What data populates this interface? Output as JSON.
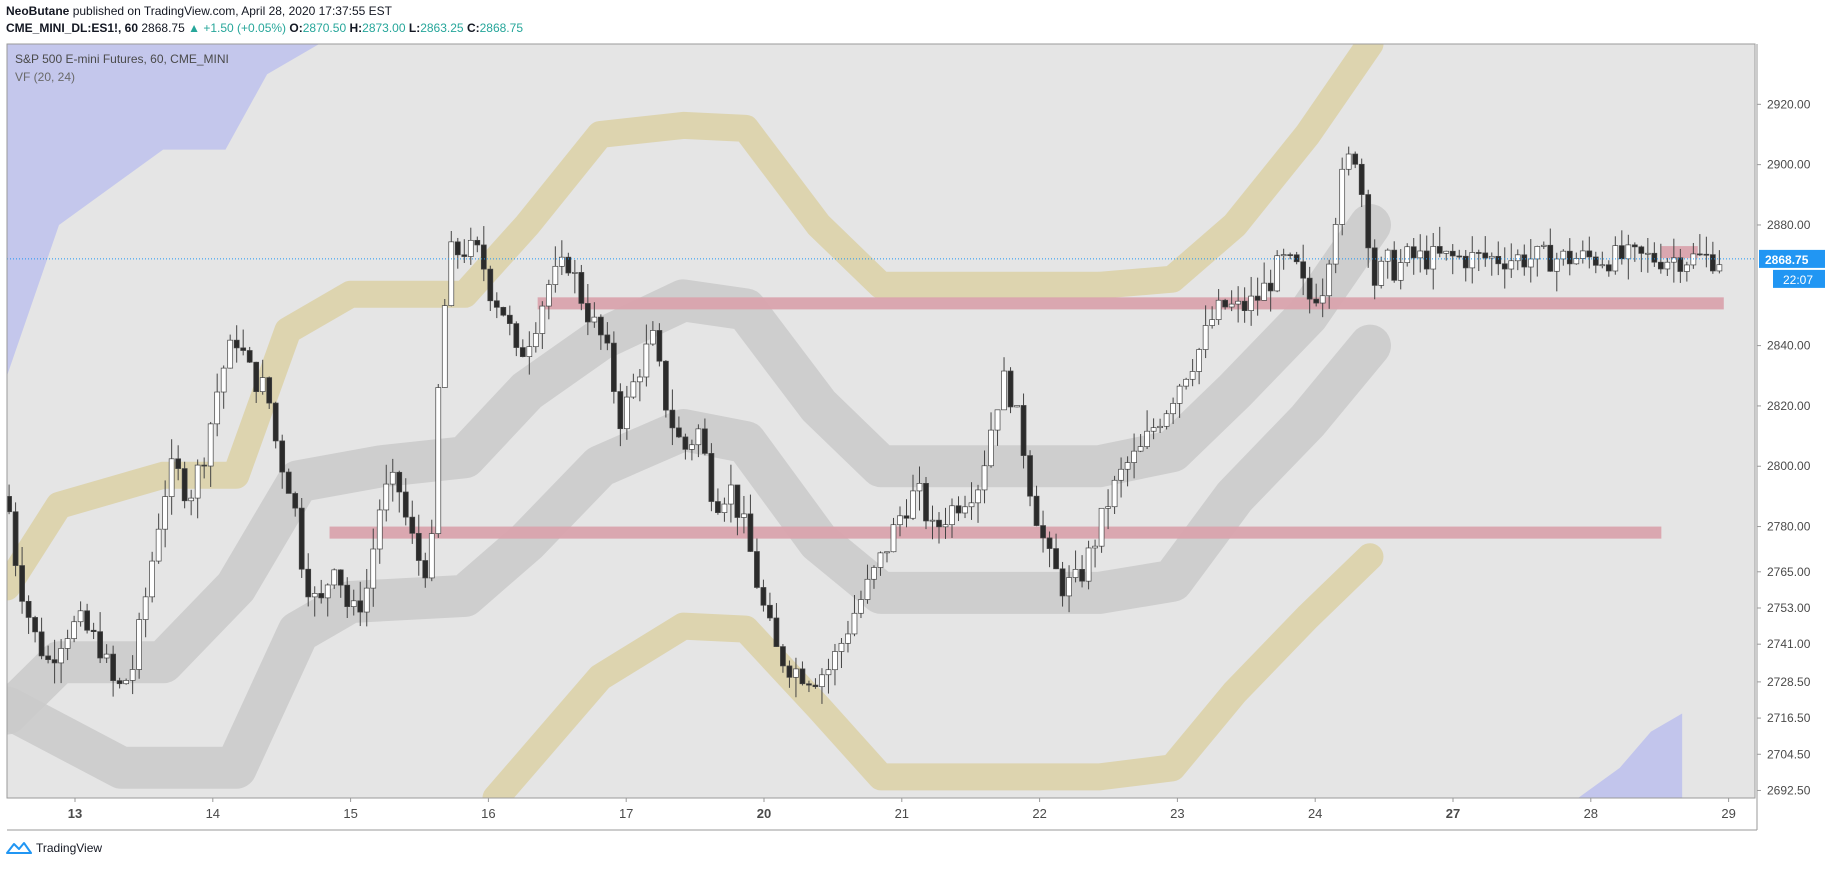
{
  "header": {
    "author": "NeoButane",
    "published_text": "published on TradingView.com, April 28, 2020 17:37:55 EST",
    "symbol": "CME_MINI_DL:ES1!, 60",
    "last": "2868.75",
    "change": "▲ +1.50 (+0.05%)",
    "o_label": "O:",
    "o_value": "2870.50",
    "h_label": "H:",
    "h_value": "2873.00",
    "l_label": "L:",
    "l_value": "2863.25",
    "c_label": "C:",
    "c_value": "2868.75"
  },
  "footer": {
    "brand": "TradingView"
  },
  "chart_data": {
    "type": "candlestick",
    "title": "S&P 500 E-mini Futures, 60, CME_MINI",
    "indicator_label": "VF (20, 24)",
    "ylim": [
      2690,
      2940
    ],
    "y_tick_labels": [
      "2920.00",
      "2900.00",
      "2880.00",
      "2840.00",
      "2820.00",
      "2800.00",
      "2780.00",
      "2765.00",
      "2753.00",
      "2741.00",
      "2728.50",
      "2716.50",
      "2704.50",
      "2692.50"
    ],
    "y_tick_values": [
      2920,
      2900,
      2880,
      2840,
      2820,
      2800,
      2780,
      2765,
      2753,
      2741,
      2728.5,
      2716.5,
      2704.5,
      2692.5
    ],
    "x_tick_labels": [
      "13",
      "14",
      "15",
      "16",
      "17",
      "20",
      "21",
      "22",
      "23",
      "24",
      "27",
      "28",
      "29"
    ],
    "bold_x_ticks": [
      "13",
      "20",
      "27"
    ],
    "last_price_label": "2868.75",
    "countdown_label": "22:07",
    "last_price": 2868.75,
    "colors": {
      "background": "#e5e5e5",
      "blue_band": "#c2c5ec",
      "yellow_band": "#dbd2a8",
      "gray_band": "#cbcbcb",
      "zone": "#d9a3ad",
      "up_candle": "#ffffff",
      "down_candle": "#2b2b2b",
      "price_line": "#2196f3"
    },
    "zones": [
      {
        "from": 17.6,
        "to": 29.0,
        "y_low": 2852,
        "y_high": 2856
      },
      {
        "from": 15.6,
        "to": 28.4,
        "y_low": 2776,
        "y_high": 2780
      },
      {
        "from": 28.4,
        "to": 28.75,
        "y_low": 2869,
        "y_high": 2873
      }
    ],
    "close_path": [
      [
        12.5,
        2790
      ],
      [
        12.6,
        2765
      ],
      [
        12.75,
        2745
      ],
      [
        12.9,
        2735
      ],
      [
        13.05,
        2745
      ],
      [
        13.2,
        2748
      ],
      [
        13.4,
        2740
      ],
      [
        13.55,
        2725
      ],
      [
        13.7,
        2732
      ],
      [
        13.85,
        2760
      ],
      [
        14.0,
        2790
      ],
      [
        14.1,
        2800
      ],
      [
        14.25,
        2790
      ],
      [
        14.4,
        2805
      ],
      [
        14.55,
        2830
      ],
      [
        14.7,
        2843
      ],
      [
        14.85,
        2830
      ],
      [
        15.0,
        2825
      ],
      [
        15.1,
        2805
      ],
      [
        15.25,
        2790
      ],
      [
        15.35,
        2765
      ],
      [
        15.5,
        2752
      ],
      [
        15.65,
        2770
      ],
      [
        15.8,
        2750
      ],
      [
        15.95,
        2758
      ],
      [
        16.1,
        2790
      ],
      [
        16.25,
        2795
      ],
      [
        16.35,
        2780
      ],
      [
        16.5,
        2765
      ],
      [
        16.6,
        2775
      ],
      [
        16.65,
        2830
      ],
      [
        16.75,
        2870
      ],
      [
        16.9,
        2872
      ],
      [
        17.05,
        2870
      ],
      [
        17.15,
        2858
      ],
      [
        17.3,
        2850
      ],
      [
        17.4,
        2835
      ],
      [
        17.55,
        2845
      ],
      [
        17.7,
        2860
      ],
      [
        17.9,
        2868
      ],
      [
        18.05,
        2853
      ],
      [
        18.25,
        2840
      ],
      [
        18.4,
        2815
      ],
      [
        18.55,
        2830
      ],
      [
        18.7,
        2843
      ],
      [
        18.85,
        2818
      ],
      [
        19.0,
        2805
      ],
      [
        19.15,
        2812
      ],
      [
        19.3,
        2788
      ],
      [
        19.45,
        2793
      ],
      [
        19.6,
        2778
      ],
      [
        19.75,
        2755
      ],
      [
        19.9,
        2738
      ],
      [
        20.05,
        2733
      ],
      [
        20.25,
        2730
      ],
      [
        20.4,
        2733
      ],
      [
        20.5,
        2740
      ],
      [
        20.65,
        2752
      ],
      [
        20.8,
        2762
      ],
      [
        20.95,
        2773
      ],
      [
        21.1,
        2785
      ],
      [
        21.25,
        2792
      ],
      [
        21.4,
        2778
      ],
      [
        21.55,
        2785
      ],
      [
        21.7,
        2790
      ],
      [
        21.85,
        2795
      ],
      [
        22.0,
        2820
      ],
      [
        22.1,
        2830
      ],
      [
        22.25,
        2810
      ],
      [
        22.35,
        2790
      ],
      [
        22.5,
        2770
      ],
      [
        22.65,
        2760
      ],
      [
        22.8,
        2762
      ],
      [
        22.95,
        2775
      ],
      [
        23.1,
        2790
      ],
      [
        23.25,
        2800
      ],
      [
        23.4,
        2805
      ],
      [
        23.5,
        2812
      ],
      [
        23.65,
        2820
      ],
      [
        23.8,
        2830
      ],
      [
        23.95,
        2838
      ],
      [
        24.1,
        2850
      ],
      [
        24.2,
        2853
      ],
      [
        24.35,
        2852
      ],
      [
        24.5,
        2855
      ],
      [
        24.65,
        2862
      ],
      [
        24.75,
        2868
      ],
      [
        24.9,
        2865
      ],
      [
        25.0,
        2855
      ],
      [
        25.15,
        2860
      ],
      [
        25.25,
        2880
      ],
      [
        25.35,
        2898
      ],
      [
        25.45,
        2905
      ],
      [
        25.55,
        2885
      ],
      [
        25.65,
        2860
      ],
      [
        25.75,
        2868
      ],
      [
        25.85,
        2865
      ],
      [
        25.95,
        2869
      ]
    ]
  }
}
